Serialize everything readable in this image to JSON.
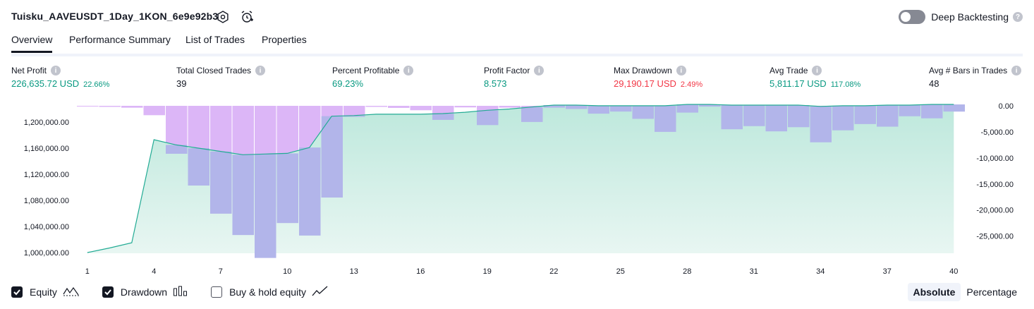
{
  "header": {
    "title": "Tuisku_AAVEUSDT_1Day_1KON_6e9e92b3",
    "settings_icon": "settings-icon",
    "add_alert_icon": "add-alert-icon",
    "deep_backtesting_label": "Deep Backtesting",
    "deep_backtesting_enabled": false
  },
  "tabs": [
    {
      "label": "Overview",
      "active": true
    },
    {
      "label": "Performance Summary",
      "active": false
    },
    {
      "label": "List of Trades",
      "active": false
    },
    {
      "label": "Properties",
      "active": false
    }
  ],
  "metrics": [
    {
      "label": "Net Profit",
      "value": "226,635.72 USD",
      "sub": "22.66%",
      "color": "green"
    },
    {
      "label": "Total Closed Trades",
      "value": "39",
      "sub": "",
      "color": "dark"
    },
    {
      "label": "Percent Profitable",
      "value": "69.23%",
      "sub": "",
      "color": "green"
    },
    {
      "label": "Profit Factor",
      "value": "8.573",
      "sub": "",
      "color": "green"
    },
    {
      "label": "Max Drawdown",
      "value": "29,190.17 USD",
      "sub": "2.49%",
      "color": "red"
    },
    {
      "label": "Avg Trade",
      "value": "5,811.17 USD",
      "sub": "117.08%",
      "color": "green"
    },
    {
      "label": "Avg # Bars in Trades",
      "value": "48",
      "sub": "",
      "color": "dark"
    }
  ],
  "chart_data": {
    "type": "area",
    "x_ticks": [
      "1",
      "4",
      "7",
      "10",
      "13",
      "16",
      "19",
      "22",
      "25",
      "28",
      "31",
      "34",
      "37",
      "40"
    ],
    "left_axis": {
      "ticks": [
        "1,200,000.00",
        "1,160,000.00",
        "1,120,000.00",
        "1,080,000.00",
        "1,040,000.00",
        "1,000,000.00"
      ],
      "ylim": [
        1000000,
        1226636
      ]
    },
    "right_axis": {
      "ticks": [
        "0.00",
        "-5,000.00",
        "-10,000.00",
        "-15,000.00",
        "-20,000.00",
        "-25,000.00"
      ],
      "ylim": [
        -29190,
        0
      ]
    },
    "series": [
      {
        "name": "Equity",
        "axis": "left",
        "x": [
          1,
          2,
          3,
          4,
          5,
          6,
          7,
          8,
          9,
          10,
          11,
          12,
          13,
          14,
          15,
          16,
          17,
          18,
          19,
          20,
          21,
          22,
          23,
          24,
          25,
          26,
          27,
          28,
          29,
          30,
          31,
          32,
          33,
          34,
          35,
          36,
          37,
          38,
          39,
          40
        ],
        "values": [
          1000000,
          1007000,
          1015000,
          1173000,
          1165000,
          1160000,
          1155000,
          1150000,
          1151000,
          1152000,
          1161000,
          1209000,
          1210000,
          1212000,
          1212000,
          1212000,
          1213000,
          1215000,
          1218000,
          1220000,
          1223000,
          1226000,
          1226000,
          1225000,
          1225000,
          1225000,
          1225000,
          1227000,
          1227000,
          1226000,
          1226000,
          1226000,
          1226000,
          1224000,
          1225000,
          1225000,
          1226000,
          1226000,
          1227000,
          1227000
        ]
      },
      {
        "name": "Drawdown",
        "axis": "right",
        "values": [
          -80,
          -200,
          -360,
          -1800,
          -9200,
          -15300,
          -20700,
          -24800,
          -29190,
          -22500,
          -24900,
          -17600,
          -2100,
          -200,
          -400,
          -850,
          -2700,
          -300,
          -3700,
          -350,
          -3100,
          -350,
          -600,
          -1500,
          -1100,
          -2500,
          -5000,
          -1300,
          -150,
          -4500,
          -3900,
          -4900,
          -4100,
          -7000,
          -4700,
          -3500,
          -4000,
          -2000,
          -2400,
          -1100
        ]
      }
    ],
    "legend": [
      "Equity",
      "Drawdown",
      "Buy & hold equity"
    ],
    "colors": {
      "equity_line": "#22ab94",
      "equity_fill_top": "#bde8dc",
      "equity_fill_bottom": "#e8f6f2",
      "drawdown_bar": "#dcb6f7",
      "drawdown_bar_overlap": "#b2b5ea"
    }
  },
  "legend_items": [
    {
      "label": "Equity",
      "checked": true,
      "icon": "equity-line-icon"
    },
    {
      "label": "Drawdown",
      "checked": true,
      "icon": "drawdown-bars-icon"
    },
    {
      "label": "Buy & hold equity",
      "checked": false,
      "icon": "buy-hold-line-icon"
    }
  ],
  "scale_toggle": {
    "absolute": "Absolute",
    "percentage": "Percentage",
    "selected": "Absolute"
  }
}
